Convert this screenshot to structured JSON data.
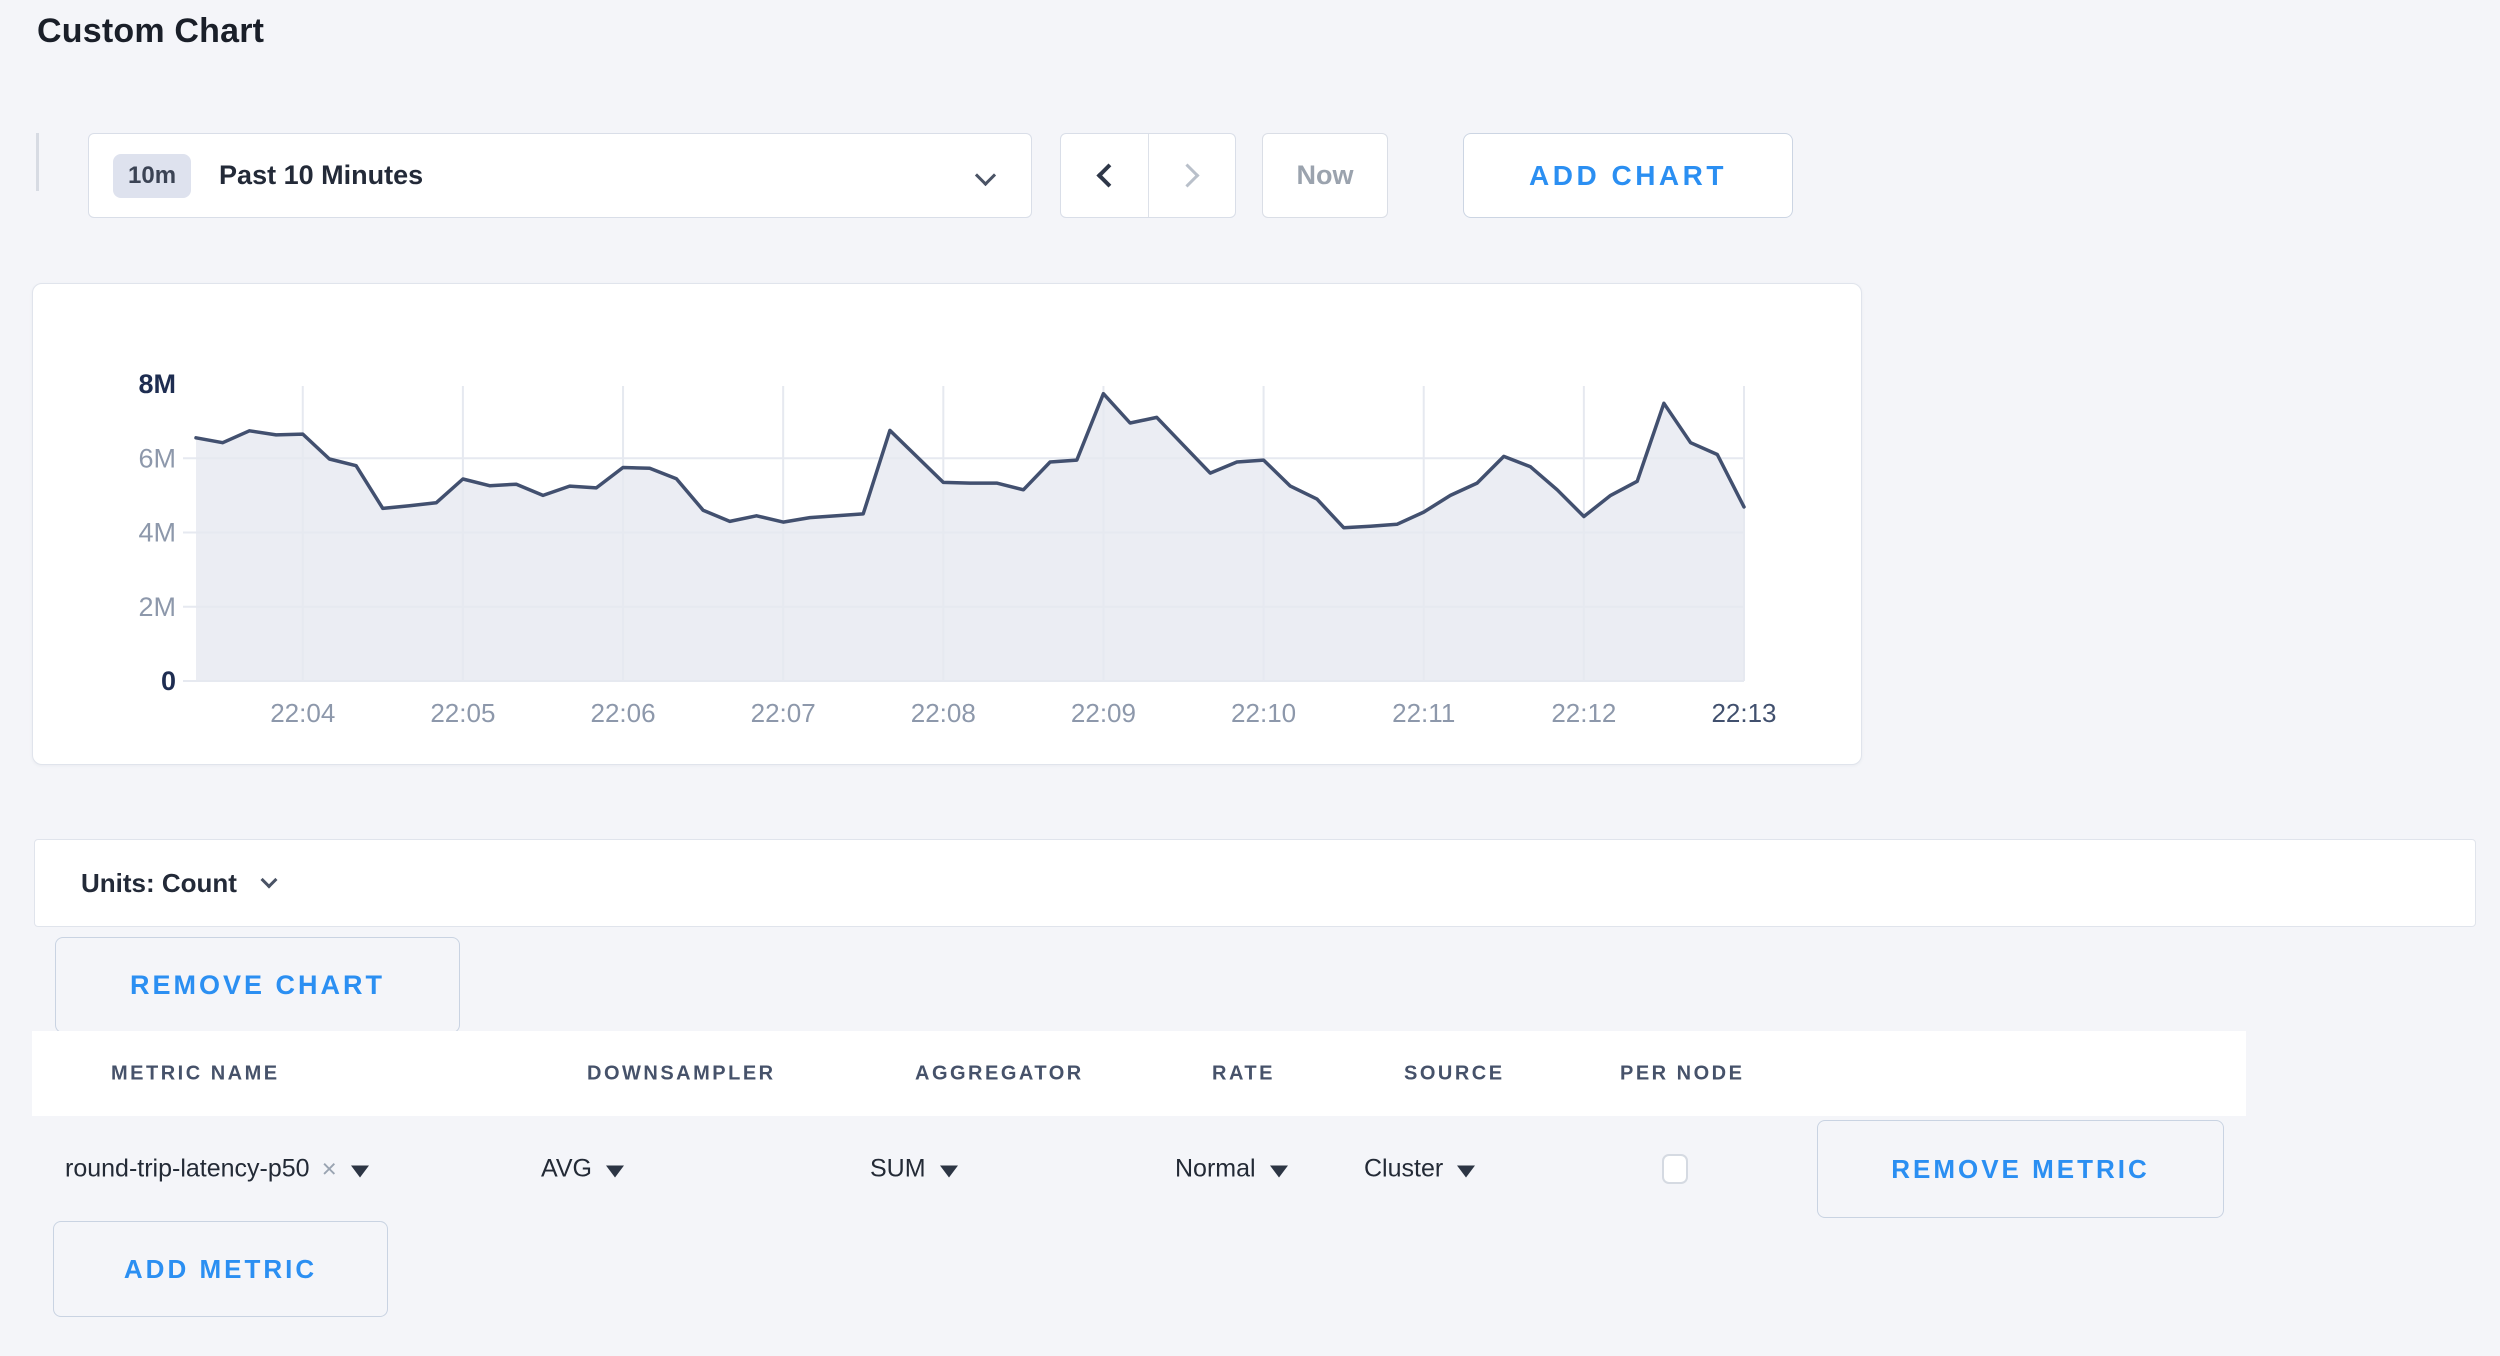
{
  "page": {
    "title": "Custom Chart"
  },
  "toolbar": {
    "time_badge": "10m",
    "time_label": "Past 10 Minutes",
    "now_label": "Now",
    "add_chart_label": "ADD CHART"
  },
  "units_bar": {
    "label": "Units: Count"
  },
  "buttons": {
    "remove_chart": "REMOVE CHART",
    "remove_metric": "REMOVE METRIC",
    "add_metric": "ADD METRIC"
  },
  "metrics_table": {
    "headers": [
      "METRIC NAME",
      "DOWNSAMPLER",
      "AGGREGATOR",
      "RATE",
      "SOURCE",
      "PER NODE"
    ],
    "row": {
      "metric_name": "round-trip-latency-p50",
      "remove_token": "×",
      "downsampler": "AVG",
      "aggregator": "SUM",
      "rate": "Normal",
      "source": "Cluster",
      "per_node_checked": false
    }
  },
  "chart_data": {
    "type": "area",
    "series_name": "round-trip-latency-p50",
    "x_start": "22:03:20",
    "x_interval_seconds": 10,
    "x_tick_labels": [
      "22:04",
      "22:05",
      "22:06",
      "22:07",
      "22:08",
      "22:09",
      "22:10",
      "22:11",
      "22:12",
      "22:13"
    ],
    "y_tick_labels": [
      "0",
      "2M",
      "4M",
      "6M",
      "8M"
    ],
    "ylim": [
      0,
      8000000
    ],
    "y_unit": "Count",
    "grid": true,
    "legend": false,
    "values_millions": [
      6.55,
      6.42,
      6.74,
      6.63,
      6.65,
      5.98,
      5.8,
      4.65,
      4.72,
      4.8,
      5.44,
      5.26,
      5.3,
      5.0,
      5.25,
      5.2,
      5.75,
      5.73,
      5.45,
      4.6,
      4.3,
      4.45,
      4.28,
      4.4,
      4.45,
      4.5,
      6.75,
      6.05,
      5.35,
      5.33,
      5.33,
      5.15,
      5.9,
      5.95,
      7.74,
      6.95,
      7.1,
      6.35,
      5.6,
      5.9,
      5.95,
      5.25,
      4.9,
      4.13,
      4.17,
      4.22,
      4.55,
      5.0,
      5.33,
      6.05,
      5.77,
      5.15,
      4.43,
      5.0,
      5.38,
      7.48,
      6.42,
      6.1,
      4.69
    ]
  },
  "colors": {
    "accent_blue": "#2b8ff2",
    "line": "#42506f",
    "area_fill": "#e8eaf1",
    "grid": "#e6e9f0",
    "axis_label": "#8d98ab",
    "axis_label_strong": "#1e2d51",
    "axis_label_last": "#41506e",
    "page_bg": "#f4f5f9"
  }
}
